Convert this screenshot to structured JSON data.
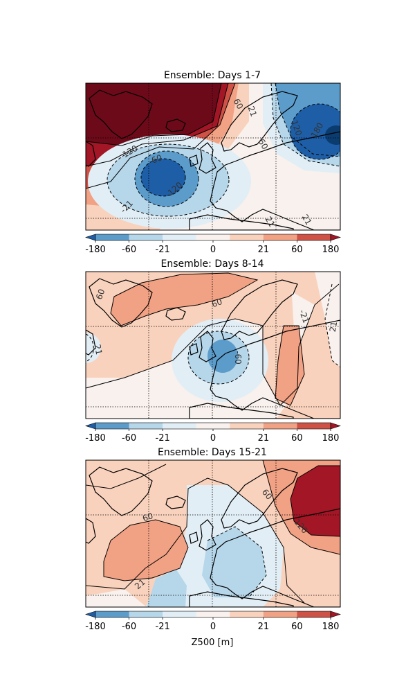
{
  "panels": [
    {
      "title": "Ensemble: Days 1-7",
      "contour_labels": [
        "120",
        "-60",
        "-120",
        "-21",
        "60",
        "21",
        "120",
        "180",
        "60",
        "21",
        "21"
      ]
    },
    {
      "title": "Ensemble: Days 8-14",
      "contour_labels": [
        "60",
        "21",
        "60",
        "-21",
        "21",
        "-60"
      ]
    },
    {
      "title": "Ensemble: Days 15-21",
      "contour_labels": [
        "60",
        "21",
        "60",
        "120"
      ]
    }
  ],
  "colorbar": {
    "ticks": [
      "-180",
      "-60",
      "-21",
      "0",
      "21",
      "60",
      "180"
    ],
    "colors": [
      "#1e5ea6",
      "#5c9ccb",
      "#b6d6ea",
      "#e2eef5",
      "#f8f1ee",
      "#f9d2bd",
      "#f1a184",
      "#cf5246",
      "#a21626"
    ],
    "extend": "both",
    "label": "Z500 [m]"
  }
}
